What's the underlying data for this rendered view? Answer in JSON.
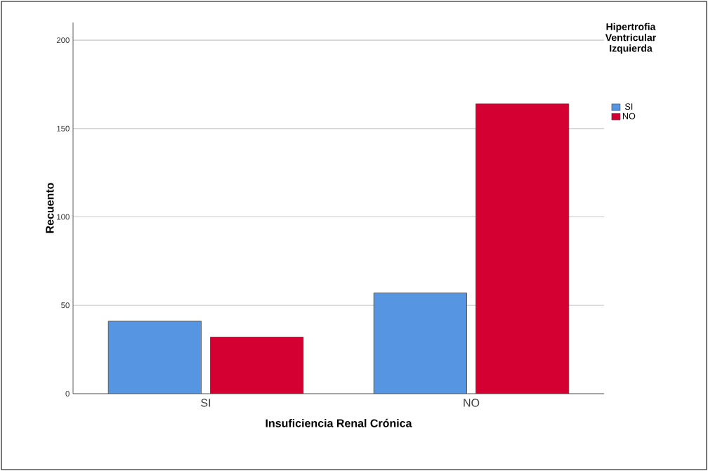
{
  "chart_data": {
    "type": "bar",
    "xlabel": "Insuficiencia Renal Crónica",
    "ylabel": "Recuento",
    "legend_title": "Hipertrofia Ventricular Izquierda",
    "categories": [
      "SI",
      "NO"
    ],
    "series": [
      {
        "name": "SI",
        "color": "#5595e2",
        "values": [
          41,
          57
        ]
      },
      {
        "name": "NO",
        "color": "#d50032",
        "values": [
          32,
          164
        ]
      }
    ],
    "ylim": [
      0,
      210
    ],
    "yticks": [
      0,
      50,
      100,
      150,
      200
    ],
    "grid": "y",
    "legend": "top right"
  }
}
